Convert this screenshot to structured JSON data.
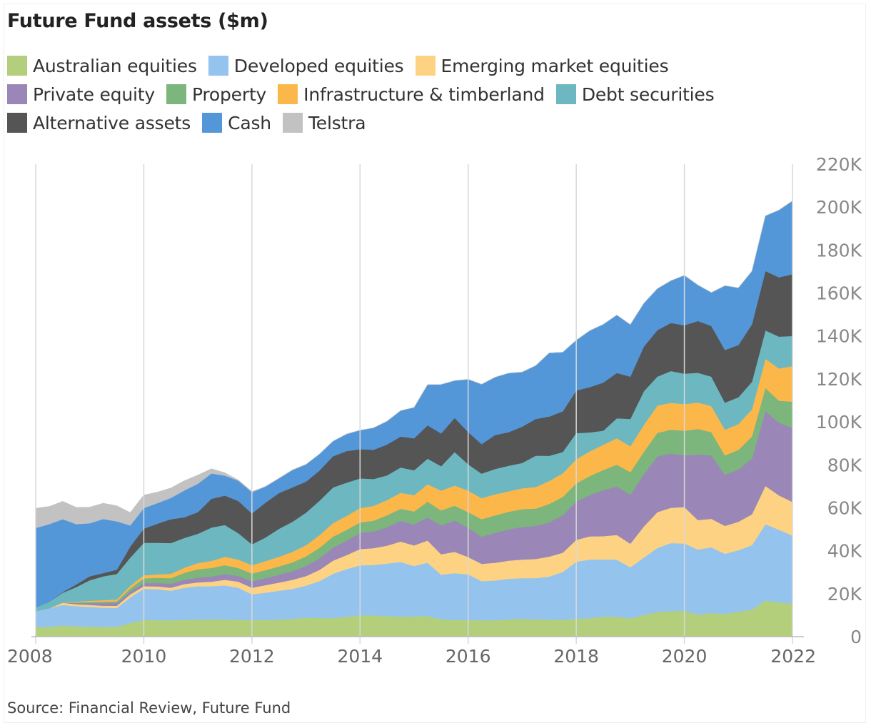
{
  "title": "Future Fund assets ($m)",
  "source": "Source: Financial Review, Future Fund",
  "legend": [
    {
      "label": "Australian equities",
      "color": "#b3cf7b"
    },
    {
      "label": "Developed equities",
      "color": "#94c4ee"
    },
    {
      "label": "Emerging market equities",
      "color": "#fdd383"
    },
    {
      "label": "Private equity",
      "color": "#9a87b7"
    },
    {
      "label": "Property",
      "color": "#7cb67c"
    },
    {
      "label": "Infrastructure & timberland",
      "color": "#fcb74b"
    },
    {
      "label": "Debt securities",
      "color": "#6db8c0"
    },
    {
      "label": "Alternative assets",
      "color": "#555555"
    },
    {
      "label": "Cash",
      "color": "#5497d9"
    },
    {
      "label": "Telstra",
      "color": "#c2c2c2"
    }
  ],
  "chart_data": {
    "type": "area",
    "stacked": true,
    "title": "Future Fund assets ($m)",
    "xlabel": "",
    "ylabel": "",
    "xlim": [
      2008,
      2022
    ],
    "ylim": [
      0,
      220000
    ],
    "x_ticks": [
      "2008",
      "2010",
      "2012",
      "2014",
      "2016",
      "2018",
      "2020",
      "2022"
    ],
    "y_ticks": [
      "0",
      "20K",
      "40K",
      "60K",
      "80K",
      "100K",
      "120K",
      "140K",
      "160K",
      "180K",
      "200K",
      "220K"
    ],
    "y_axis_side": "right",
    "grid": "vertical",
    "x": [
      2008.0,
      2008.25,
      2008.5,
      2008.75,
      2009.0,
      2009.25,
      2009.5,
      2009.75,
      2010.0,
      2010.25,
      2010.5,
      2010.75,
      2011.0,
      2011.25,
      2011.5,
      2011.75,
      2012.0,
      2012.25,
      2012.5,
      2012.75,
      2013.0,
      2013.25,
      2013.5,
      2013.75,
      2014.0,
      2014.25,
      2014.5,
      2014.75,
      2015.0,
      2015.25,
      2015.5,
      2015.75,
      2016.0,
      2016.25,
      2016.5,
      2016.75,
      2017.0,
      2017.25,
      2017.5,
      2017.75,
      2018.0,
      2018.25,
      2018.5,
      2018.75,
      2019.0,
      2019.25,
      2019.5,
      2019.75,
      2020.0,
      2020.25,
      2020.5,
      2020.75,
      2021.0,
      2021.25,
      2021.5,
      2021.75,
      2022.0
    ],
    "series": [
      {
        "name": "Australian equities",
        "values": [
          4500,
          4600,
          5200,
          4900,
          4600,
          4600,
          4700,
          6300,
          7800,
          7700,
          7600,
          7800,
          8000,
          8100,
          8000,
          7900,
          7700,
          7800,
          8000,
          8300,
          8800,
          8700,
          8700,
          9300,
          10000,
          9900,
          9600,
          9300,
          9500,
          9600,
          8100,
          7800,
          7700,
          7600,
          7700,
          8000,
          8300,
          8100,
          7900,
          7900,
          8400,
          8600,
          9300,
          9300,
          8500,
          10100,
          11500,
          12000,
          12000,
          10300,
          11000,
          10600,
          11600,
          12600,
          16800,
          16000,
          15400
        ]
      },
      {
        "name": "Developed equities",
        "values": [
          7400,
          8600,
          9600,
          9300,
          9300,
          8900,
          8700,
          12000,
          14500,
          14400,
          13800,
          15000,
          15500,
          15400,
          15900,
          14900,
          12000,
          12700,
          13400,
          14000,
          15000,
          17200,
          20600,
          22200,
          23200,
          23500,
          24500,
          25500,
          23400,
          24900,
          20800,
          21800,
          21300,
          18300,
          18500,
          19000,
          19000,
          19200,
          20100,
          22200,
          26500,
          27300,
          26700,
          26600,
          23800,
          26800,
          29800,
          31600,
          31400,
          30300,
          30600,
          28000,
          28700,
          30000,
          35600,
          33800,
          31700
        ]
      },
      {
        "name": "Emerging market equities",
        "values": [
          0,
          0,
          1000,
          900,
          900,
          900,
          1000,
          1400,
          1200,
          1300,
          1400,
          1700,
          1800,
          2100,
          2600,
          2800,
          3100,
          3500,
          3800,
          4200,
          4400,
          5200,
          6100,
          6500,
          7600,
          7800,
          8300,
          9500,
          9600,
          10300,
          9500,
          9900,
          8100,
          8000,
          8200,
          8400,
          8600,
          8900,
          9300,
          9000,
          10200,
          10800,
          10800,
          11500,
          11000,
          14400,
          16700,
          16400,
          17000,
          13700,
          13300,
          13000,
          13200,
          14400,
          17800,
          16000,
          15600
        ]
      },
      {
        "name": "Private equity",
        "values": [
          0,
          0,
          0,
          600,
          900,
          1300,
          1300,
          1300,
          1500,
          1600,
          1900,
          2000,
          2200,
          2400,
          2600,
          2700,
          3000,
          3300,
          3700,
          4000,
          4700,
          5400,
          6100,
          6700,
          7600,
          7800,
          8600,
          9600,
          9800,
          10700,
          13500,
          14600,
          13600,
          12700,
          14000,
          14600,
          15200,
          15400,
          15900,
          17500,
          17800,
          19300,
          21400,
          22600,
          22800,
          24400,
          25900,
          25300,
          24100,
          30500,
          29500,
          23800,
          24300,
          26000,
          34900,
          33800,
          34500
        ]
      },
      {
        "name": "Property",
        "values": [
          0,
          0,
          100,
          300,
          500,
          600,
          800,
          1500,
          2200,
          2400,
          2600,
          3200,
          3900,
          4000,
          4200,
          3700,
          3600,
          3700,
          3800,
          4100,
          4500,
          4900,
          5100,
          5000,
          4800,
          5000,
          5500,
          5700,
          6000,
          7400,
          6900,
          6900,
          7300,
          8100,
          8100,
          8200,
          8300,
          8100,
          8600,
          8500,
          8500,
          8800,
          9400,
          10100,
          10500,
          10400,
          11000,
          11100,
          11400,
          11900,
          10800,
          9000,
          9200,
          10300,
          10700,
          10300,
          12200
        ]
      },
      {
        "name": "Infrastructure & timberland",
        "values": [
          0,
          0,
          100,
          300,
          500,
          700,
          800,
          1200,
          1400,
          1600,
          2000,
          2400,
          2900,
          3300,
          3900,
          3900,
          3900,
          4200,
          4500,
          4900,
          5200,
          5900,
          6300,
          6500,
          6700,
          6900,
          7100,
          7400,
          7600,
          8100,
          9200,
          9400,
          10000,
          9800,
          9800,
          9500,
          9700,
          10000,
          10700,
          11000,
          11200,
          11500,
          11800,
          12300,
          12100,
          12500,
          12700,
          12500,
          12400,
          12300,
          12200,
          12000,
          12000,
          12500,
          13600,
          15000,
          16600
        ]
      },
      {
        "name": "Debt securities",
        "values": [
          1800,
          3100,
          4500,
          6800,
          9600,
          11100,
          11900,
          13200,
          15100,
          14700,
          14300,
          13900,
          13600,
          15500,
          14800,
          12300,
          9700,
          11000,
          13000,
          14000,
          15200,
          16000,
          16600,
          15500,
          13800,
          12500,
          11500,
          11800,
          11600,
          11900,
          11400,
          15600,
          12300,
          11400,
          11800,
          11900,
          11800,
          14600,
          11700,
          9900,
          12200,
          8800,
          6500,
          9300,
          12700,
          15700,
          13500,
          14800,
          14200,
          13900,
          13700,
          12600,
          12500,
          12900,
          13200,
          14800,
          14000
        ]
      },
      {
        "name": "Alternative assets",
        "values": [
          0,
          0,
          300,
          1200,
          1800,
          1500,
          2000,
          5100,
          6600,
          8900,
          11100,
          9600,
          10100,
          13400,
          13700,
          15000,
          14400,
          16200,
          16700,
          16000,
          14400,
          14100,
          14500,
          14700,
          13600,
          13600,
          14400,
          14400,
          14900,
          15500,
          15200,
          15900,
          15000,
          13800,
          15800,
          15600,
          16900,
          17100,
          18300,
          18900,
          19800,
          21100,
          22400,
          21100,
          19700,
          20800,
          21600,
          22400,
          22500,
          24100,
          23600,
          24500,
          24300,
          26800,
          27700,
          27600,
          28800
        ]
      },
      {
        "name": "Cash",
        "values": [
          36900,
          36100,
          33900,
          28100,
          24700,
          25200,
          22500,
          9800,
          9600,
          9600,
          9900,
          12500,
          13200,
          11800,
          9300,
          9400,
          9900,
          7500,
          6800,
          8100,
          8000,
          7600,
          7000,
          7900,
          8800,
          10200,
          10800,
          12000,
          14300,
          18900,
          22800,
          17300,
          24500,
          27800,
          26900,
          27500,
          25400,
          24800,
          29600,
          27500,
          23400,
          26300,
          27100,
          26900,
          24200,
          20100,
          19300,
          19600,
          23200,
          16700,
          15500,
          29900,
          26600,
          24700,
          25600,
          31300,
          34100
        ]
      },
      {
        "name": "Telstra",
        "values": [
          9200,
          8200,
          8300,
          7800,
          7500,
          7300,
          7200,
          6000,
          6000,
          5100,
          4600,
          4500,
          4000,
          2200,
          1300,
          300,
          300,
          0,
          0,
          0,
          0,
          0,
          0,
          0,
          0,
          0,
          0,
          0,
          0,
          0,
          0,
          0,
          0,
          0,
          0,
          0,
          0,
          0,
          0,
          0,
          0,
          0,
          0,
          0,
          0,
          0,
          0,
          0,
          0,
          0,
          0,
          0,
          0,
          0,
          0,
          0,
          0
        ]
      }
    ]
  }
}
